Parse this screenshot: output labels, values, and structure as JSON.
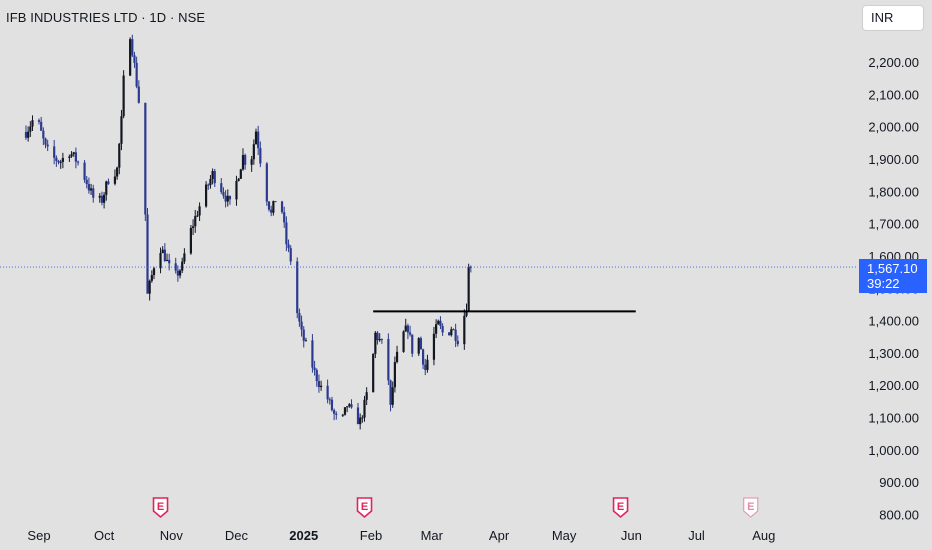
{
  "header": {
    "title": "IFB INDUSTRIES LTD · 1D · NSE"
  },
  "currency_button": {
    "label": "INR"
  },
  "last_price": {
    "value": "1,567.10",
    "countdown": "39:22",
    "color": "#2962ff"
  },
  "earnings_marker_label": "E",
  "colors": {
    "up": "#131722",
    "down": "#2b3a8f",
    "background": "#e1e1e1",
    "earnings": "#e0235a"
  },
  "chart_data": {
    "type": "candlestick",
    "title": "IFB INDUSTRIES LTD · 1D · NSE",
    "ylim": [
      780,
      2330
    ],
    "y_ticks": [
      800,
      900,
      1000,
      1100,
      1200,
      1300,
      1400,
      1500,
      1600,
      1700,
      1800,
      1900,
      2000,
      2100,
      2200
    ],
    "y_tick_labels": [
      "800.00",
      "900.00",
      "1,000.00",
      "1,100.00",
      "1,200.00",
      "1,300.00",
      "1,400.00",
      "1,500.00",
      "1,600.00",
      "1,700.00",
      "1,800.00",
      "1,900.00",
      "2,000.00",
      "2,100.00",
      "2,200.00"
    ],
    "x_ticks": [
      {
        "label": "Sep",
        "day": 0
      },
      {
        "label": "Oct",
        "day": 30
      },
      {
        "label": "Nov",
        "day": 61
      },
      {
        "label": "Dec",
        "day": 91
      },
      {
        "label": "2025",
        "day": 122
      },
      {
        "label": "Feb",
        "day": 153
      },
      {
        "label": "Mar",
        "day": 181
      },
      {
        "label": "Apr",
        "day": 212
      },
      {
        "label": "May",
        "day": 242
      },
      {
        "label": "Jun",
        "day": 273
      },
      {
        "label": "Jul",
        "day": 303
      },
      {
        "label": "Aug",
        "day": 334
      }
    ],
    "earnings_days": [
      {
        "day": 56,
        "future": false
      },
      {
        "day": 150,
        "future": false
      },
      {
        "day": 268,
        "future": false
      },
      {
        "day": 328,
        "future": true
      }
    ],
    "resistance_line": {
      "value": 1430,
      "from_day": 154,
      "to_day": 275
    },
    "last_price": 1567.1,
    "anchors": [
      [
        -6,
        1985
      ],
      [
        -3,
        2020
      ],
      [
        0,
        2005
      ],
      [
        3,
        1935
      ],
      [
        6,
        1905
      ],
      [
        10,
        1895
      ],
      [
        14,
        1925
      ],
      [
        18,
        1890
      ],
      [
        22,
        1830
      ],
      [
        26,
        1765
      ],
      [
        29,
        1775
      ],
      [
        32,
        1840
      ],
      [
        36,
        1870
      ],
      [
        38,
        2020
      ],
      [
        40,
        2270
      ],
      [
        42,
        2290
      ],
      [
        44,
        2190
      ],
      [
        46,
        2080
      ],
      [
        48,
        1980
      ],
      [
        50,
        1480
      ],
      [
        52,
        1540
      ],
      [
        55,
        1640
      ],
      [
        58,
        1600
      ],
      [
        62,
        1530
      ],
      [
        66,
        1570
      ],
      [
        68,
        1640
      ],
      [
        72,
        1720
      ],
      [
        76,
        1790
      ],
      [
        80,
        1855
      ],
      [
        84,
        1810
      ],
      [
        88,
        1760
      ],
      [
        91,
        1830
      ],
      [
        94,
        1910
      ],
      [
        97,
        1870
      ],
      [
        100,
        1990
      ],
      [
        102,
        1900
      ],
      [
        104,
        1810
      ],
      [
        107,
        1730
      ],
      [
        110,
        1800
      ],
      [
        112,
        1740
      ],
      [
        114,
        1640
      ],
      [
        116,
        1590
      ],
      [
        117,
        1480
      ],
      [
        119,
        1425
      ],
      [
        121,
        1360
      ],
      [
        124,
        1305
      ],
      [
        127,
        1240
      ],
      [
        130,
        1195
      ],
      [
        133,
        1160
      ],
      [
        136,
        1110
      ],
      [
        139,
        1075
      ],
      [
        142,
        1140
      ],
      [
        145,
        1105
      ],
      [
        148,
        1090
      ],
      [
        150,
        1140
      ],
      [
        153,
        1230
      ],
      [
        155,
        1360
      ],
      [
        158,
        1330
      ],
      [
        160,
        1310
      ],
      [
        162,
        1130
      ],
      [
        164,
        1260
      ],
      [
        167,
        1350
      ],
      [
        170,
        1380
      ],
      [
        172,
        1310
      ],
      [
        175,
        1345
      ],
      [
        178,
        1250
      ],
      [
        181,
        1340
      ],
      [
        184,
        1390
      ],
      [
        187,
        1350
      ],
      [
        190,
        1380
      ],
      [
        193,
        1345
      ],
      [
        195,
        1390
      ],
      [
        197,
        1450
      ],
      [
        198,
        1563
      ],
      [
        199,
        1567
      ]
    ]
  }
}
